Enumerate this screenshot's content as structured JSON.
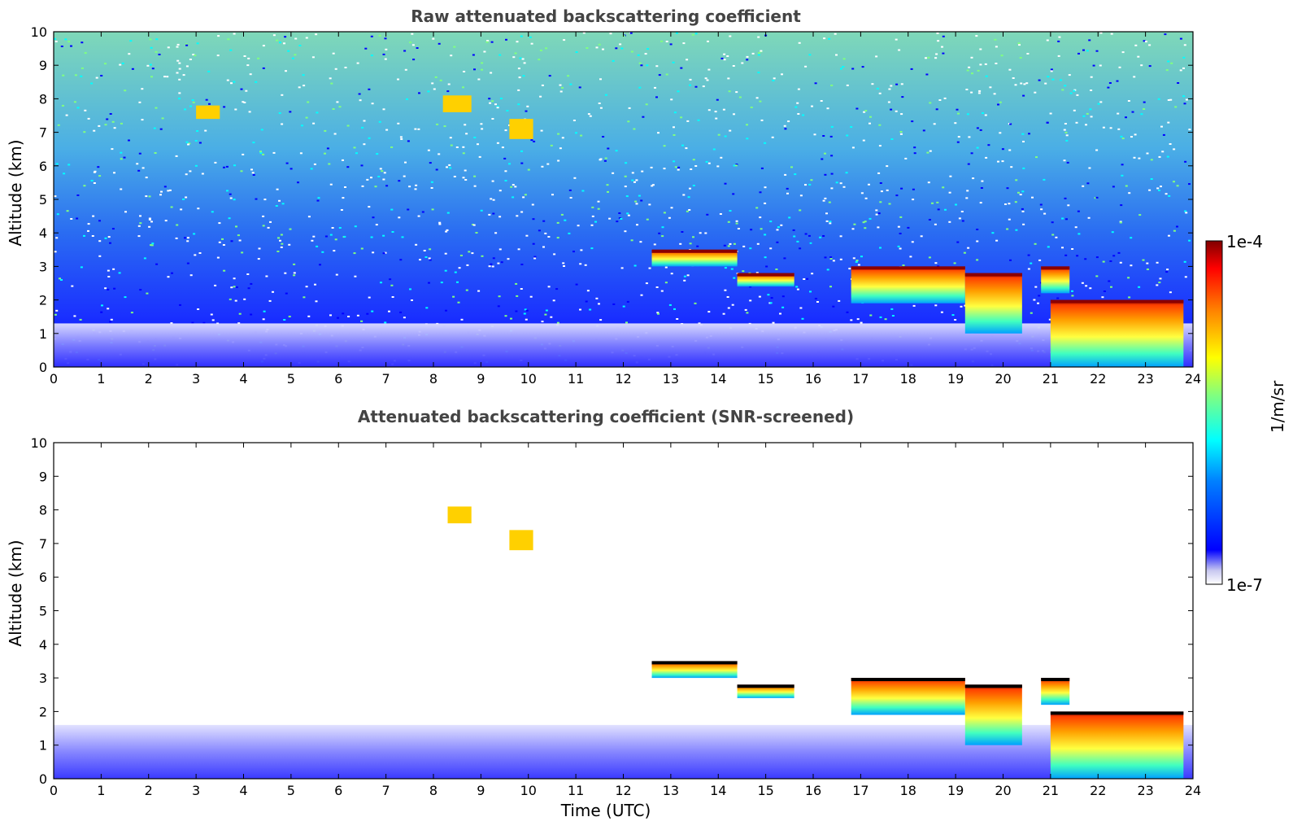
{
  "chart_data": [
    {
      "type": "heatmap",
      "title": "Raw attenuated backscattering coefficient",
      "xlabel": "",
      "ylabel": "Altitude (km)",
      "xlim": [
        0,
        24
      ],
      "ylim": [
        0,
        10
      ],
      "xticks": [
        "0",
        "1",
        "2",
        "3",
        "4",
        "5",
        "6",
        "7",
        "8",
        "9",
        "10",
        "11",
        "12",
        "13",
        "14",
        "15",
        "16",
        "17",
        "18",
        "19",
        "20",
        "21",
        "22",
        "23",
        "24"
      ],
      "yticks": [
        "0",
        "1",
        "2",
        "3",
        "4",
        "5",
        "6",
        "7",
        "8",
        "9",
        "10"
      ],
      "features": [
        {
          "kind": "noise-background",
          "description_free": true,
          "alt_range": [
            0,
            10
          ]
        },
        {
          "kind": "boundary-layer",
          "time": [
            0,
            24
          ],
          "alt": [
            0,
            1.3
          ],
          "level": "low"
        },
        {
          "kind": "cloud-layer",
          "time": [
            12.6,
            14.4
          ],
          "alt": [
            3.0,
            3.5
          ],
          "level": "high"
        },
        {
          "kind": "cloud-layer",
          "time": [
            14.4,
            15.6
          ],
          "alt": [
            2.4,
            2.8
          ],
          "level": "high"
        },
        {
          "kind": "cloud-layer",
          "time": [
            16.8,
            19.2
          ],
          "alt": [
            1.9,
            3.0
          ],
          "level": "high"
        },
        {
          "kind": "cloud-layer",
          "time": [
            19.2,
            20.4
          ],
          "alt": [
            1.0,
            2.8
          ],
          "level": "high"
        },
        {
          "kind": "cloud-layer",
          "time": [
            20.8,
            21.4
          ],
          "alt": [
            2.2,
            3.0
          ],
          "level": "high"
        },
        {
          "kind": "cloud-layer",
          "time": [
            21.0,
            23.8
          ],
          "alt": [
            0.0,
            2.0
          ],
          "level": "high"
        },
        {
          "kind": "cirrus",
          "time": [
            8.2,
            8.8
          ],
          "alt": [
            7.6,
            8.1
          ],
          "level": "mid"
        },
        {
          "kind": "cirrus",
          "time": [
            9.6,
            10.1
          ],
          "alt": [
            6.8,
            7.4
          ],
          "level": "mid"
        },
        {
          "kind": "cirrus",
          "time": [
            3.0,
            3.5
          ],
          "alt": [
            7.4,
            7.8
          ],
          "level": "mid"
        }
      ]
    },
    {
      "type": "heatmap",
      "title": "Attenuated backscattering coefficient (SNR-screened)",
      "xlabel": "Time (UTC)",
      "ylabel": "Altitude (km)",
      "xlim": [
        0,
        24
      ],
      "ylim": [
        0,
        10
      ],
      "xticks": [
        "0",
        "1",
        "2",
        "3",
        "4",
        "5",
        "6",
        "7",
        "8",
        "9",
        "10",
        "11",
        "12",
        "13",
        "14",
        "15",
        "16",
        "17",
        "18",
        "19",
        "20",
        "21",
        "22",
        "23",
        "24"
      ],
      "yticks": [
        "0",
        "1",
        "2",
        "3",
        "4",
        "5",
        "6",
        "7",
        "8",
        "9",
        "10"
      ],
      "features": [
        {
          "kind": "boundary-layer",
          "time": [
            0,
            24
          ],
          "alt": [
            0,
            1.6
          ],
          "level": "low"
        },
        {
          "kind": "cloud-layer",
          "time": [
            12.6,
            14.4
          ],
          "alt": [
            3.0,
            3.5
          ],
          "level": "high"
        },
        {
          "kind": "cloud-layer",
          "time": [
            14.4,
            15.6
          ],
          "alt": [
            2.4,
            2.8
          ],
          "level": "high"
        },
        {
          "kind": "cloud-layer",
          "time": [
            16.8,
            19.2
          ],
          "alt": [
            1.9,
            3.0
          ],
          "level": "high"
        },
        {
          "kind": "cloud-layer",
          "time": [
            19.2,
            20.4
          ],
          "alt": [
            1.0,
            2.8
          ],
          "level": "high"
        },
        {
          "kind": "cloud-layer",
          "time": [
            20.8,
            21.4
          ],
          "alt": [
            2.2,
            3.0
          ],
          "level": "high"
        },
        {
          "kind": "cloud-layer",
          "time": [
            21.0,
            23.8
          ],
          "alt": [
            0.0,
            2.0
          ],
          "level": "high"
        },
        {
          "kind": "cirrus",
          "time": [
            8.3,
            8.8
          ],
          "alt": [
            7.6,
            8.1
          ],
          "level": "mid"
        },
        {
          "kind": "cirrus",
          "time": [
            9.6,
            10.1
          ],
          "alt": [
            6.8,
            7.4
          ],
          "level": "mid"
        }
      ]
    }
  ],
  "colorbar": {
    "min_label": "1e-7",
    "max_label": "1e-4",
    "unit": "1/m/sr",
    "colormap": [
      "#ffffff",
      "#c8c8f0",
      "#0000ff",
      "#0080ff",
      "#00ffff",
      "#80ff80",
      "#ffff00",
      "#ff8000",
      "#ff0000",
      "#800000"
    ]
  }
}
